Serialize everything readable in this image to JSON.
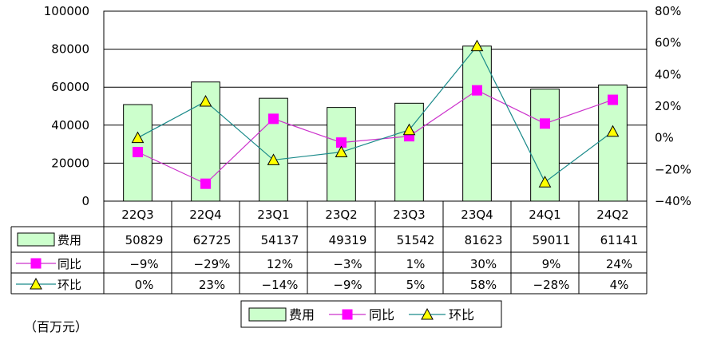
{
  "chart_data": {
    "type": "bar",
    "categories": [
      "22Q3",
      "22Q4",
      "23Q1",
      "23Q2",
      "23Q3",
      "23Q4",
      "24Q1",
      "24Q2"
    ],
    "series": [
      {
        "name": "费用",
        "type": "bar",
        "axis": "left",
        "values": [
          50829,
          62725,
          54137,
          49319,
          51542,
          81623,
          59011,
          61141
        ],
        "labels": [
          "50829",
          "62725",
          "54137",
          "49319",
          "51542",
          "81623",
          "59011",
          "61141"
        ],
        "color": "#ccffcc"
      },
      {
        "name": "同比",
        "type": "line",
        "axis": "right",
        "values": [
          -9,
          -29,
          12,
          -3,
          1,
          30,
          9,
          24
        ],
        "labels": [
          "−9%",
          "−29%",
          "12%",
          "−3%",
          "1%",
          "30%",
          "9%",
          "24%"
        ],
        "color": "#ff00ff",
        "line_color": "#cc33cc",
        "marker": "square"
      },
      {
        "name": "环比",
        "type": "line",
        "axis": "right",
        "values": [
          0,
          23,
          -14,
          -9,
          5,
          58,
          -28,
          4
        ],
        "labels": [
          "0%",
          "23%",
          "−14%",
          "−9%",
          "5%",
          "58%",
          "−28%",
          "4%"
        ],
        "color": "#ffff00",
        "line_color": "#1a8a8a",
        "marker": "triangle"
      }
    ],
    "y_left": {
      "ticks": [
        "100000",
        "80000",
        "60000",
        "40000",
        "20000",
        "0"
      ],
      "ylim": [
        0,
        100000
      ]
    },
    "y_right": {
      "ticks": [
        "80%",
        "60%",
        "40%",
        "20%",
        "0%",
        "−20%",
        "−40%"
      ],
      "ylim": [
        -40,
        80
      ]
    },
    "grid": true,
    "legend_position": "bottom",
    "data_table": true,
    "unit_label": "（百万元）"
  }
}
